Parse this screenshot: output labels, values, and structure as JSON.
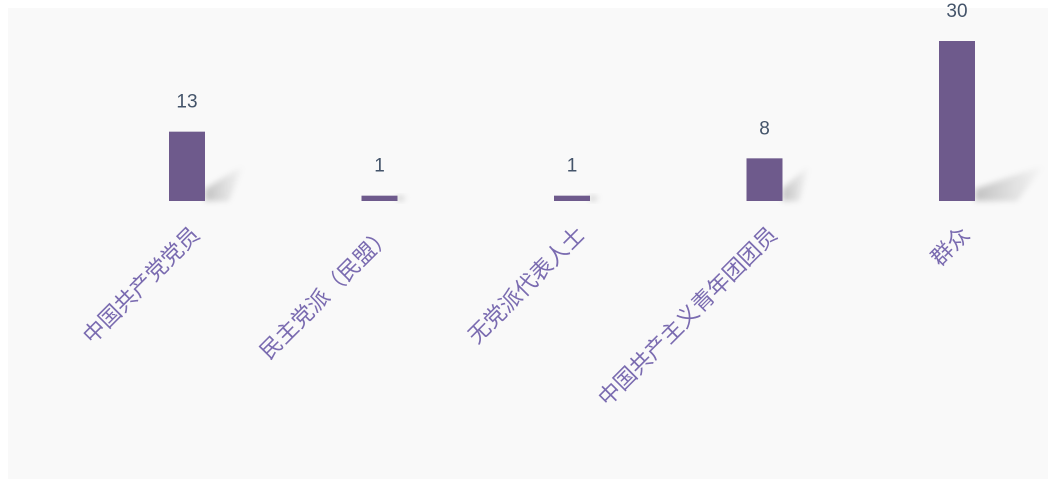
{
  "chart_data": {
    "type": "bar",
    "categories": [
      "中国共产党党员",
      "民主党派（民盟）",
      "无党派代表人士",
      "中国共产主义青年团团员",
      "群众"
    ],
    "values": [
      13,
      1,
      1,
      8,
      30
    ],
    "title": "",
    "xlabel": "",
    "ylabel": "",
    "ylim": [
      0,
      30
    ],
    "grid": false,
    "legend": "none",
    "bar_color": "#6e5a8c",
    "label_color": "#7a6bb0",
    "value_label_color": "#44546a",
    "background_color": "#f9f9f9"
  }
}
